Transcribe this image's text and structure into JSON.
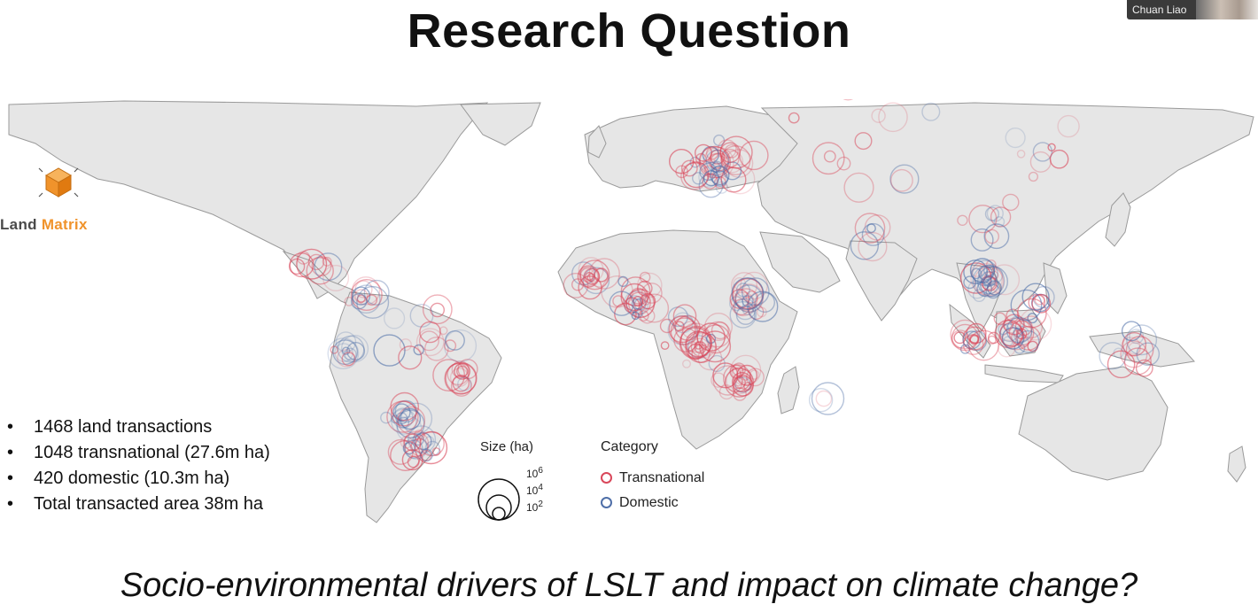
{
  "slide": {
    "title": "Research Question",
    "subtitle": "Socio-environmental drivers of LSLT and impact on climate change?"
  },
  "video": {
    "participant_name": "Chuan Liao"
  },
  "logo": {
    "name_part1": "Land ",
    "name_part2": "Matrix",
    "accent_color": "#f0932b",
    "icon": "cube-icon"
  },
  "stats": [
    "1468 land transactions",
    "1048 transnational (27.6m ha)",
    "420 domestic (10.3m ha)",
    "Total transacted area 38m ha"
  ],
  "map": {
    "land_color": "#e6e6e6",
    "border_color": "#9a9a9a",
    "legend": {
      "size": {
        "title": "Size (ha)",
        "ticks": [
          {
            "base": "10",
            "exp": "6"
          },
          {
            "base": "10",
            "exp": "4"
          },
          {
            "base": "10",
            "exp": "2"
          }
        ]
      },
      "category": {
        "title": "Category",
        "items": [
          {
            "label": "Transnational",
            "color": "#d9475a"
          },
          {
            "label": "Domestic",
            "color": "#4f6fa8"
          }
        ]
      }
    }
  }
}
